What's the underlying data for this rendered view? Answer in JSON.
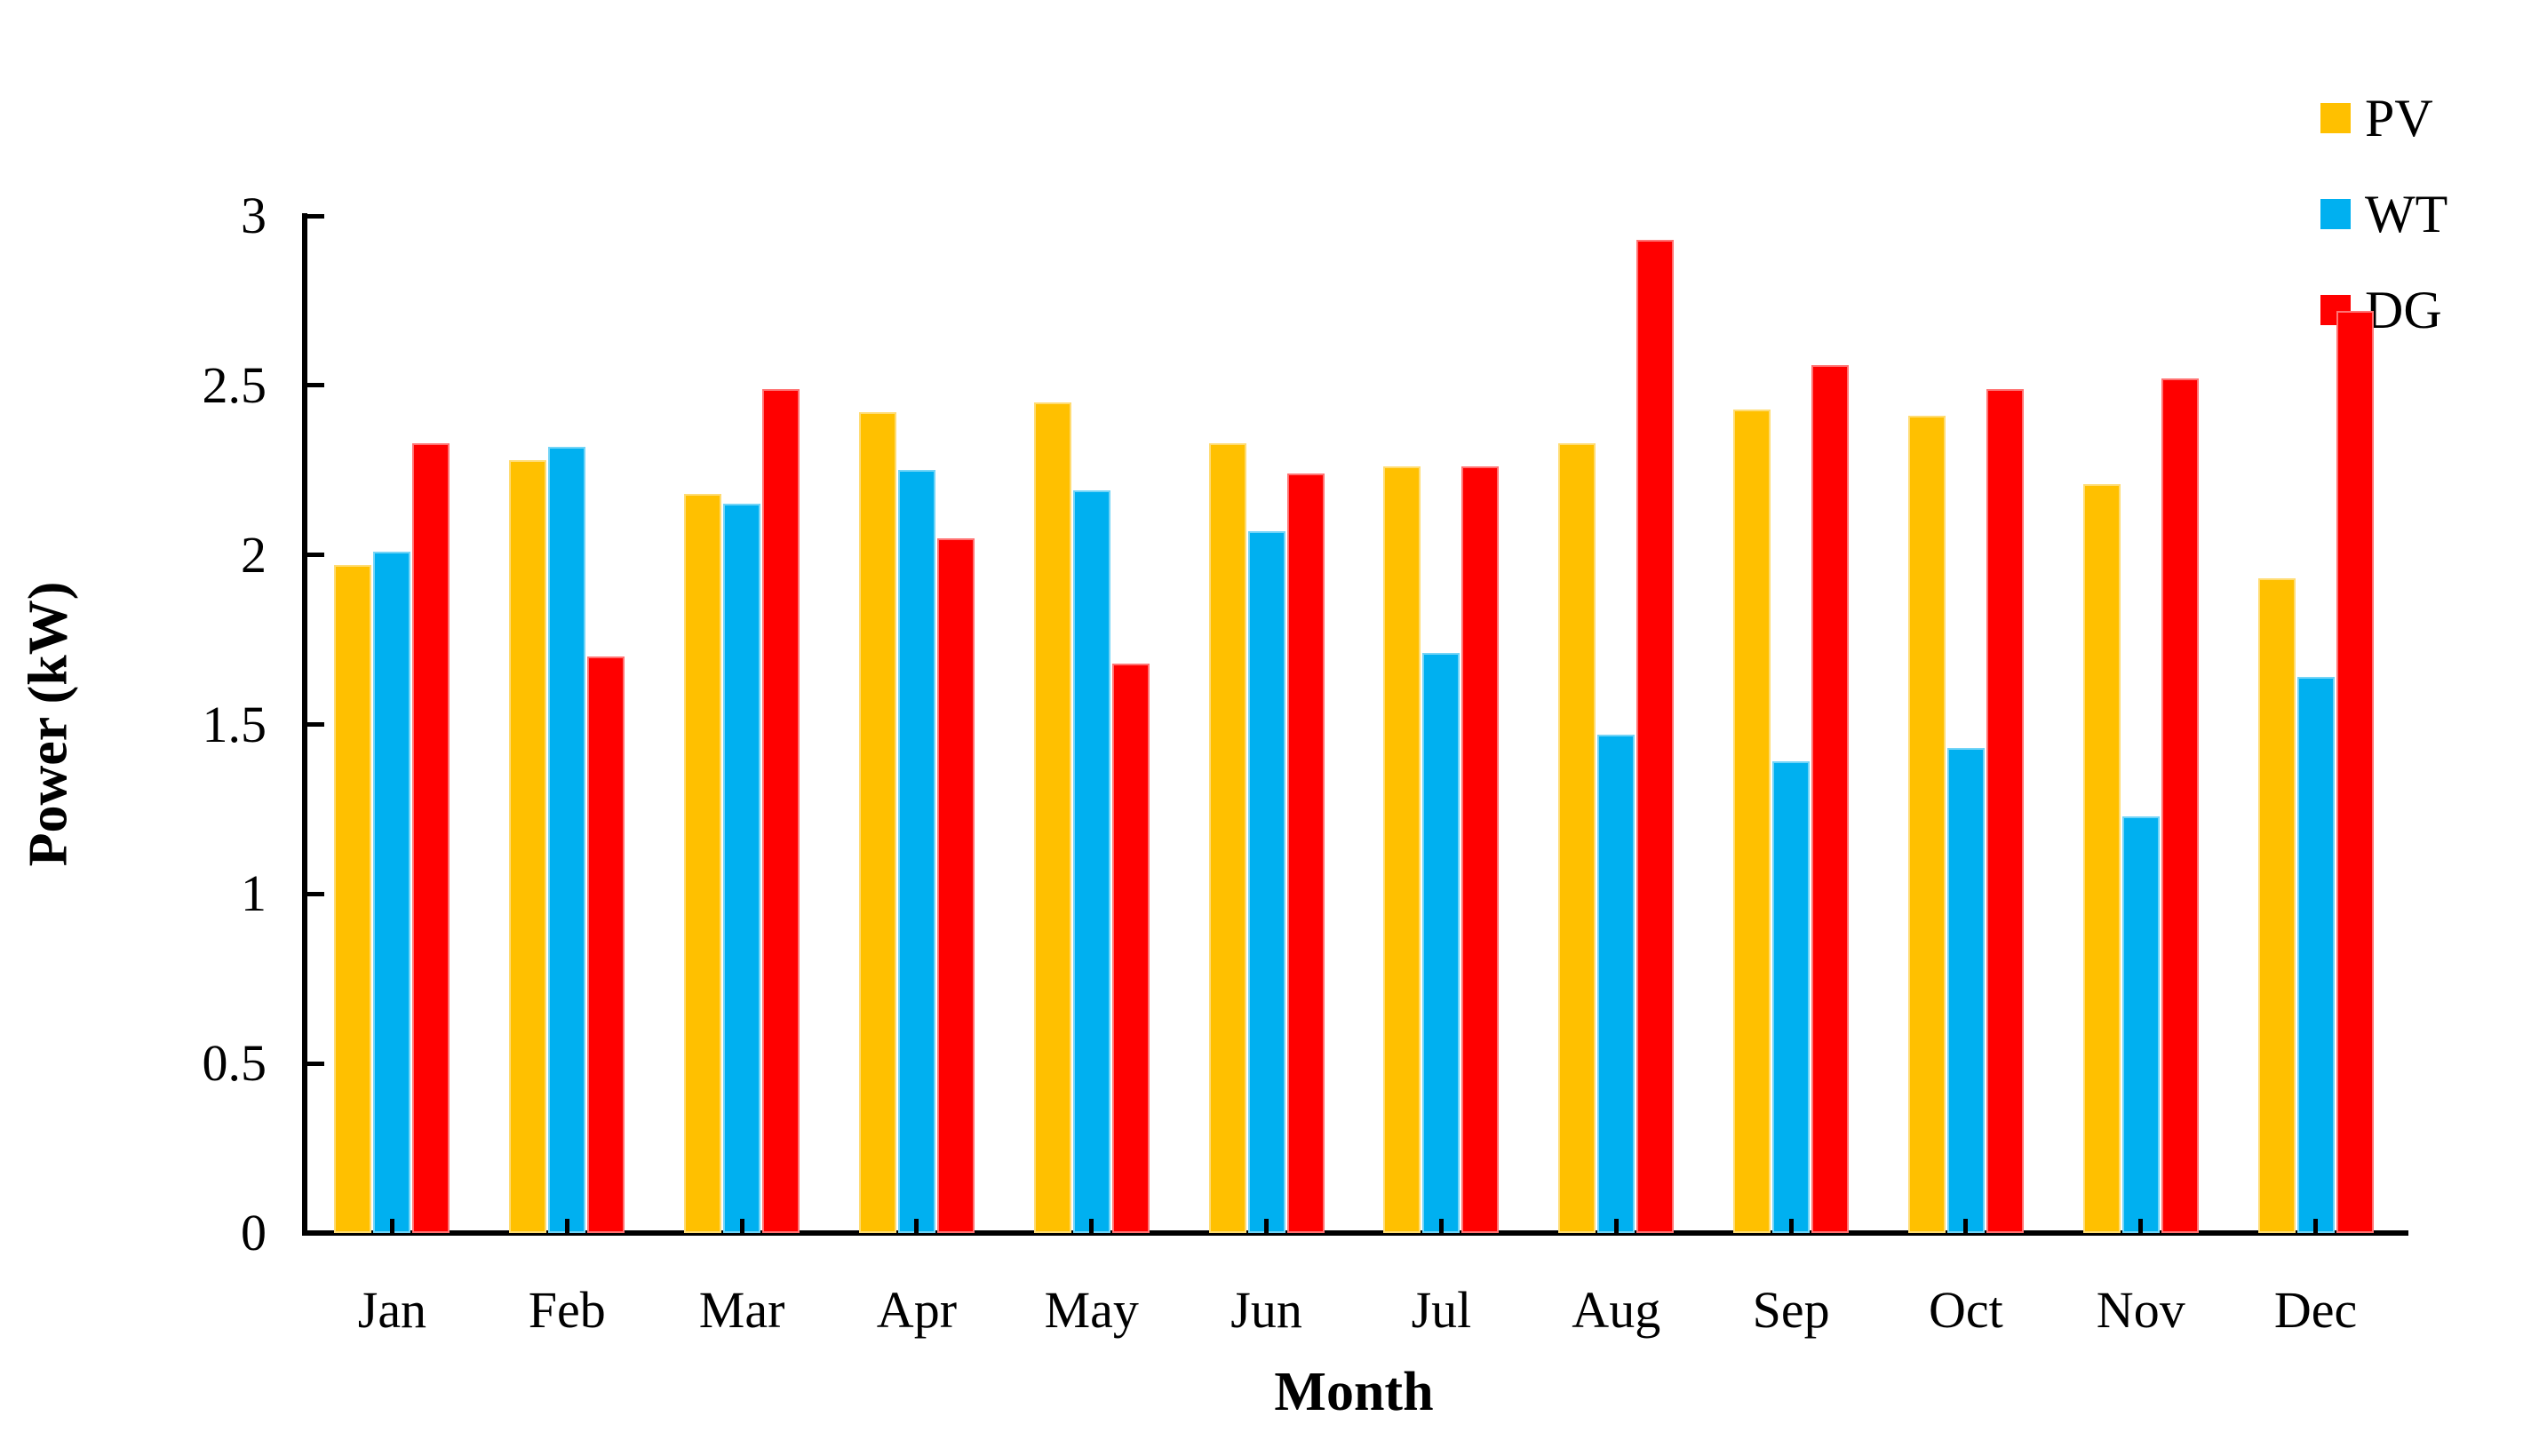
{
  "chart_data": {
    "type": "bar",
    "title": "",
    "xlabel": "Month",
    "ylabel": "Power (kW)",
    "categories": [
      "Jan",
      "Feb",
      "Mar",
      "Apr",
      "May",
      "Jun",
      "Jul",
      "Aug",
      "Sep",
      "Oct",
      "Nov",
      "Dec"
    ],
    "series": [
      {
        "name": "PV",
        "color": "#FFC000",
        "values": [
          1.97,
          2.28,
          2.18,
          2.42,
          2.45,
          2.33,
          2.26,
          2.33,
          2.43,
          2.41,
          2.21,
          1.93
        ]
      },
      {
        "name": "WT",
        "color": "#00B0F0",
        "values": [
          2.01,
          2.32,
          2.15,
          2.25,
          2.19,
          2.07,
          1.71,
          1.47,
          1.39,
          1.43,
          1.23,
          1.64
        ]
      },
      {
        "name": "DG",
        "color": "#FF0000",
        "values": [
          2.33,
          1.7,
          2.49,
          2.05,
          1.68,
          2.24,
          2.26,
          2.93,
          2.56,
          2.49,
          2.52,
          2.72
        ]
      }
    ],
    "ylim": [
      0,
      3
    ],
    "yticks": [
      0,
      0.5,
      1,
      1.5,
      2,
      2.5,
      3
    ],
    "ytick_labels": [
      "0",
      "0.5",
      "1",
      "1.5",
      "2",
      "2.5",
      "3"
    ],
    "grid": false,
    "legend_position": "top-right",
    "axis_color": "#000000",
    "background_color": "#FFFFFF"
  }
}
